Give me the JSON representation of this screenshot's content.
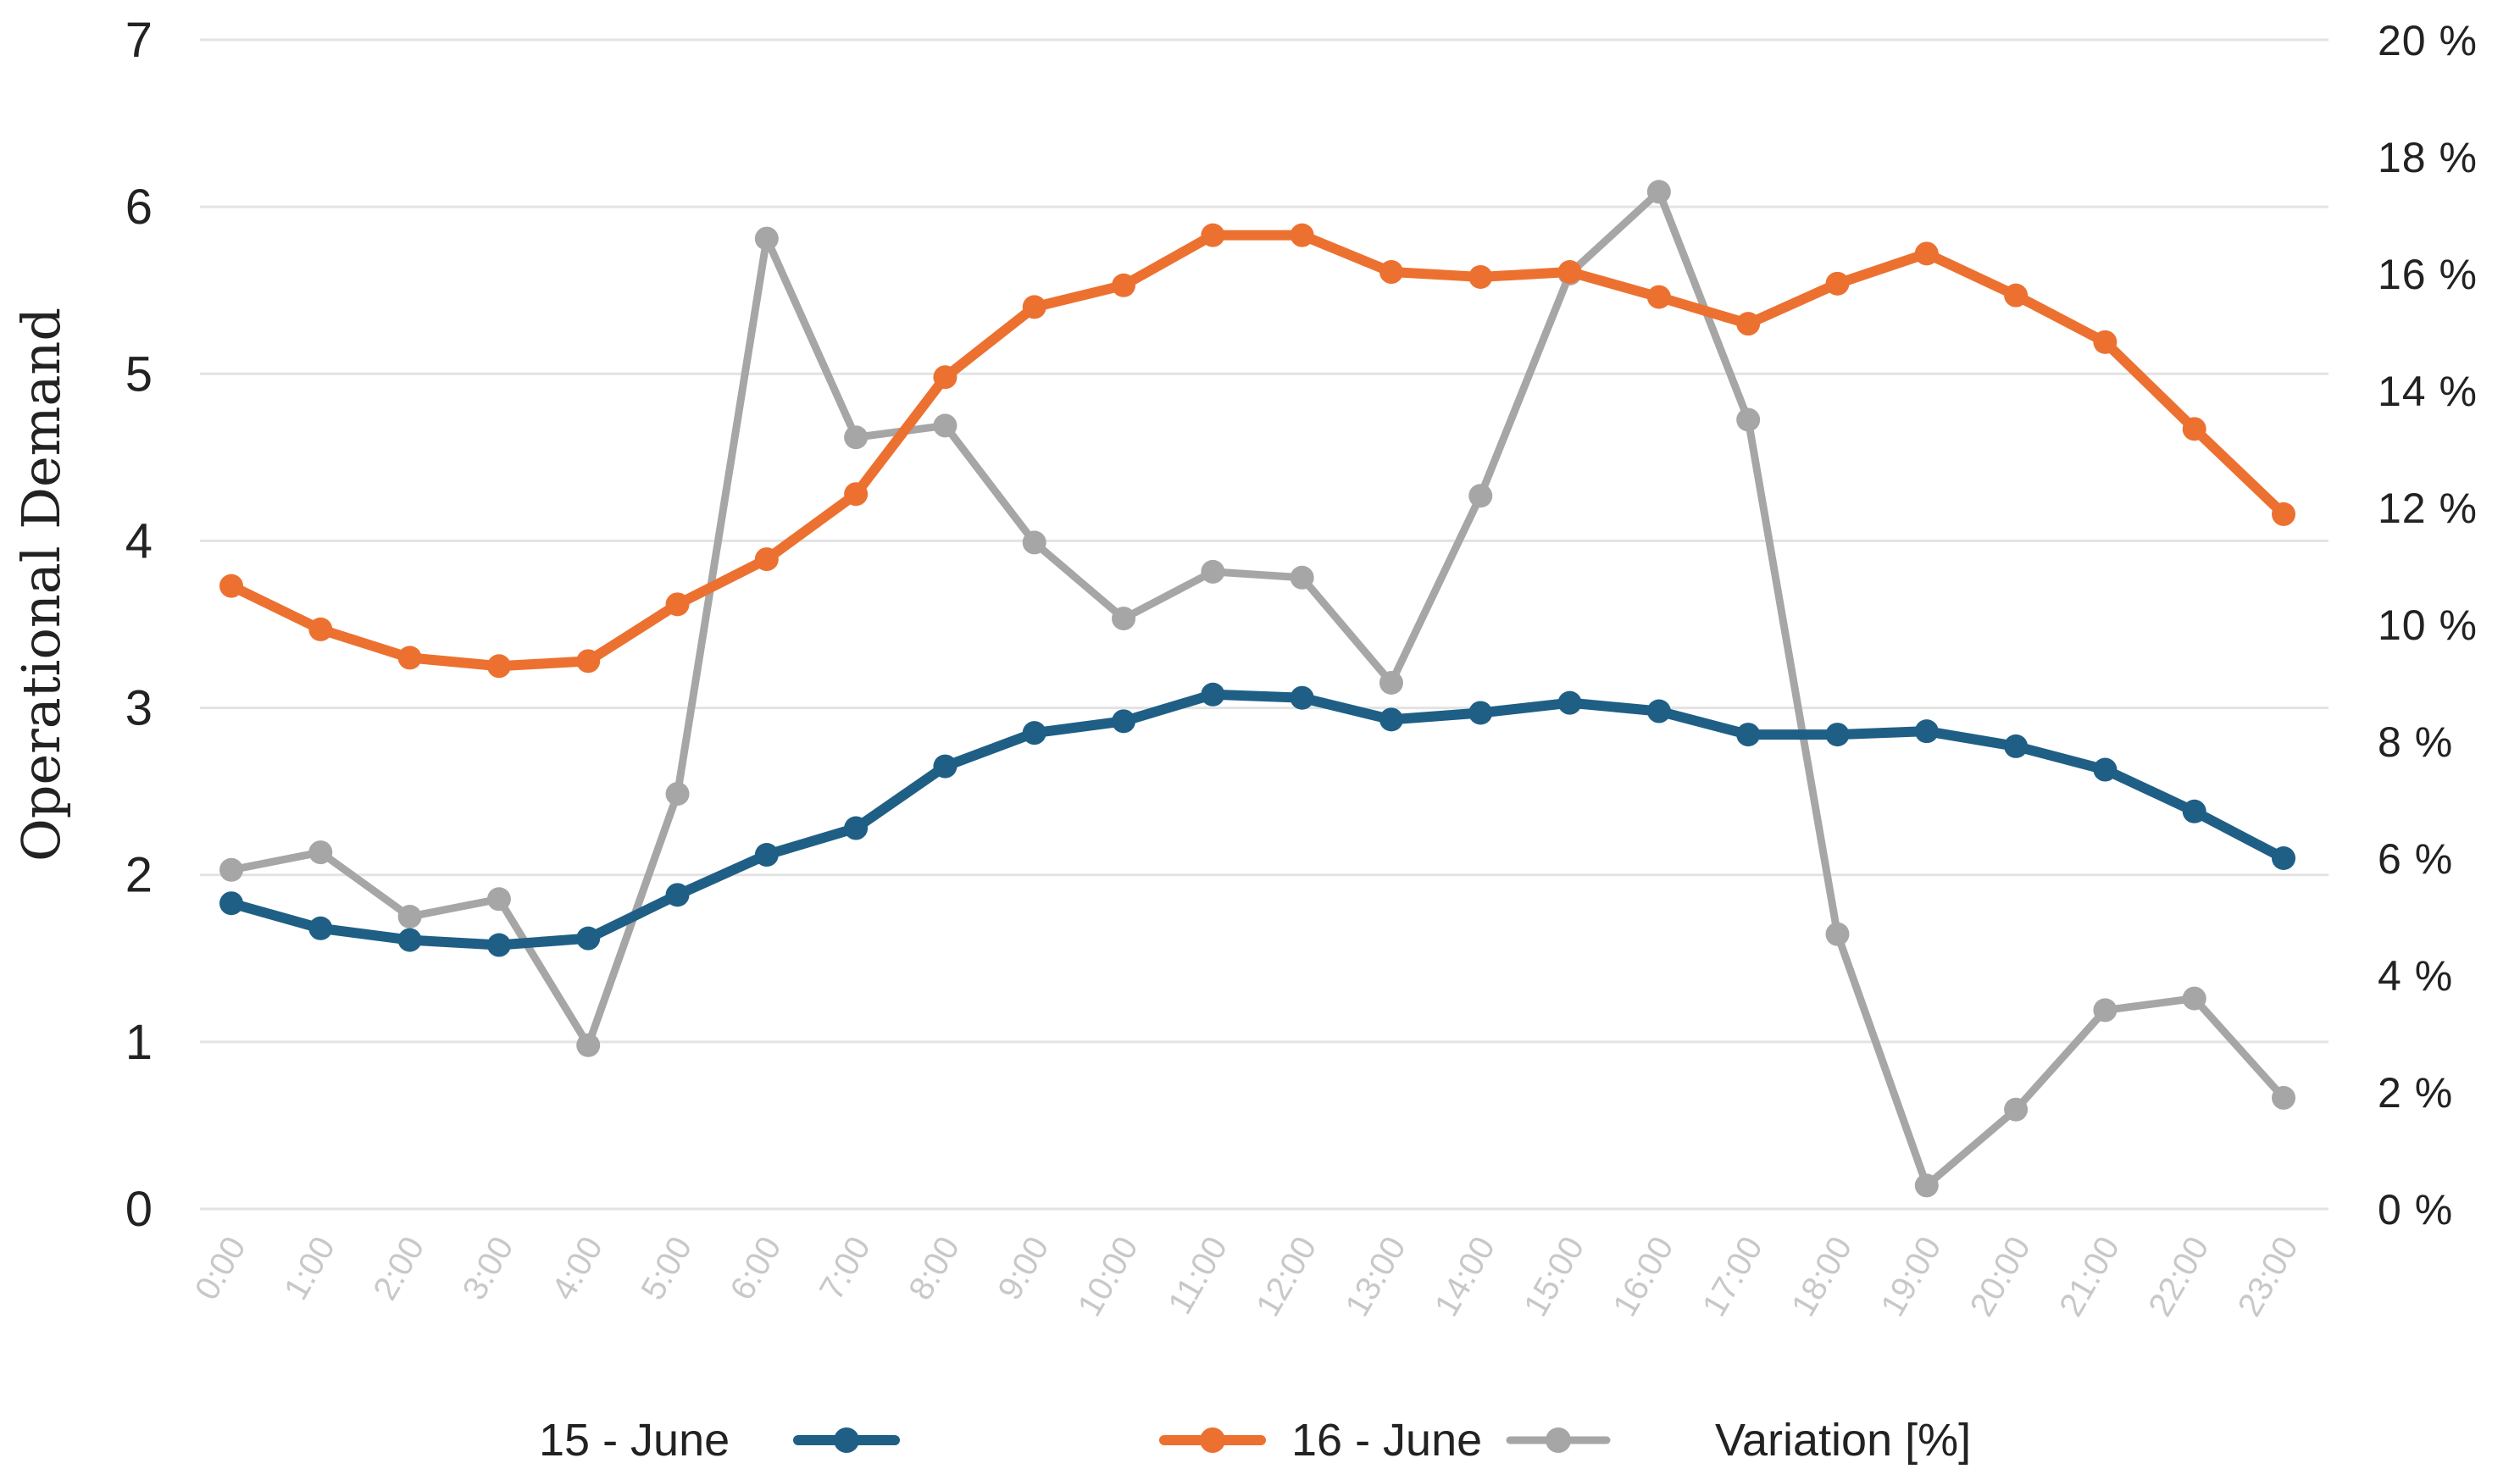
{
  "chart_data": {
    "type": "line",
    "categories": [
      "0:00",
      "1:00",
      "2:00",
      "3:00",
      "4:00",
      "5:00",
      "6:00",
      "7:00",
      "8:00",
      "9:00",
      "10:00",
      "11:00",
      "12:00",
      "13:00",
      "14:00",
      "15:00",
      "16:00",
      "17:00",
      "18:00",
      "19:00",
      "20:00",
      "21:00",
      "22:00",
      "23:00"
    ],
    "ylabel": "Operational Demand",
    "ylim": [
      0,
      7
    ],
    "yticks": [
      "0",
      "1",
      "2",
      "3",
      "4",
      "5",
      "6",
      "7"
    ],
    "y2lim": [
      0,
      20
    ],
    "y2ticks": [
      "0 %",
      "2 %",
      "4 %",
      "6 %",
      "8 %",
      "10 %",
      "12 %",
      "14 %",
      "16 %",
      "18 %",
      "20 %"
    ],
    "grid": true,
    "legend_position": "bottom",
    "series": [
      {
        "name": "15 - June",
        "axis": "left",
        "color": "#1f5f85",
        "values": [
          1.83,
          1.68,
          1.61,
          1.58,
          1.62,
          1.88,
          2.12,
          2.28,
          2.65,
          2.85,
          2.92,
          3.08,
          3.06,
          2.93,
          2.97,
          3.03,
          2.98,
          2.84,
          2.84,
          2.86,
          2.77,
          2.63,
          2.38,
          2.1
        ]
      },
      {
        "name": "16 - June",
        "axis": "left",
        "color": "#ec7130",
        "values": [
          3.73,
          3.47,
          3.3,
          3.25,
          3.28,
          3.62,
          3.89,
          4.28,
          4.98,
          5.4,
          5.53,
          5.83,
          5.83,
          5.61,
          5.58,
          5.61,
          5.46,
          5.3,
          5.54,
          5.72,
          5.47,
          5.19,
          4.67,
          4.16
        ]
      },
      {
        "name": "Variation [%]",
        "axis": "right",
        "color": "#a6a6a6",
        "values": [
          5.8,
          6.1,
          5.0,
          5.3,
          2.8,
          7.1,
          16.6,
          13.2,
          13.4,
          11.4,
          10.1,
          10.9,
          10.8,
          9.0,
          12.2,
          16.0,
          17.4,
          13.5,
          4.7,
          0.4,
          1.7,
          3.4,
          3.6,
          1.9
        ]
      }
    ]
  }
}
